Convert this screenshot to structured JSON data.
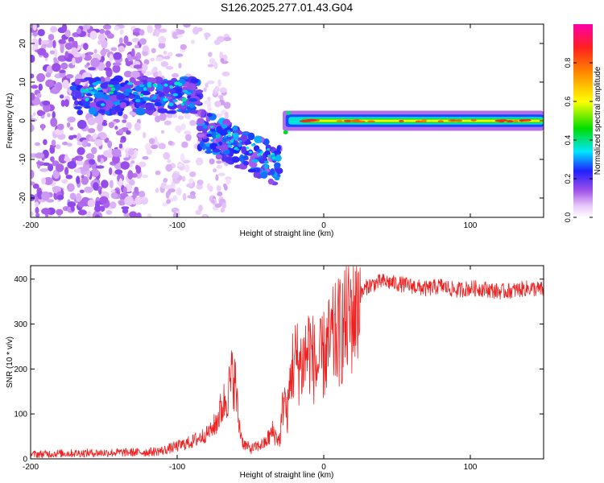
{
  "title": "S126.2025.277.01.43.G04",
  "chart_data": [
    {
      "type": "heatmap",
      "title": "S126.2025.277.01.43.G04",
      "xlabel": "Height of straight line (km)",
      "ylabel": "Frequency (Hz)",
      "xlim": [
        -200,
        150
      ],
      "ylim": [
        -25,
        25
      ],
      "xticks": [
        -200,
        -100,
        0,
        100
      ],
      "xtick_labels": [
        "-200",
        "-100",
        "0",
        "100"
      ],
      "yticks": [
        -20,
        -10,
        0,
        10,
        20
      ],
      "ytick_labels": [
        "-20",
        "-10",
        "0",
        "10",
        "20"
      ],
      "colorbar": {
        "label": "Normalized spectral amplitude",
        "range": [
          0,
          1
        ],
        "ticks": [
          0,
          0.2,
          0.4,
          0.6,
          0.8
        ],
        "tick_labels": [
          "0.0",
          "0.2",
          "0.4",
          "0.6",
          "0.8"
        ],
        "colors": [
          "#ffffff",
          "#d9a8f5",
          "#8a2be2",
          "#2020ff",
          "#00e5ff",
          "#00dd00",
          "#ffff00",
          "#ff2020",
          "#ff00aa"
        ]
      },
      "features": [
        {
          "name": "diffuse scatter",
          "height_km": [
            -200,
            -130
          ],
          "freq_hz": [
            -25,
            25
          ],
          "amplitude": 0.1
        },
        {
          "name": "upper cluster",
          "height_km": [
            -170,
            -85
          ],
          "freq_hz": [
            2,
            10
          ],
          "amplitude": 0.3
        },
        {
          "name": "descending branch",
          "height_km": [
            -85,
            -30
          ],
          "freq_hz": [
            -15,
            0
          ],
          "amplitude": 0.35
        },
        {
          "name": "carrier line",
          "height_km": [
            -25,
            150
          ],
          "freq_hz": [
            -1,
            1
          ],
          "amplitude": 0.9
        }
      ]
    },
    {
      "type": "line",
      "xlabel": "Height of straight line (km)",
      "ylabel": "SNR (10 * v/v)",
      "xlim": [
        -200,
        150
      ],
      "ylim": [
        0,
        430
      ],
      "xticks": [
        -200,
        -100,
        0,
        100
      ],
      "xtick_labels": [
        "-200",
        "-100",
        "0",
        "100"
      ],
      "yticks": [
        0,
        100,
        200,
        300,
        400
      ],
      "ytick_labels": [
        "0",
        "100",
        "200",
        "300",
        "400"
      ],
      "color": "#ee2020",
      "x": [
        -200,
        -180,
        -160,
        -140,
        -120,
        -110,
        -100,
        -90,
        -80,
        -75,
        -70,
        -65,
        -62,
        -60,
        -58,
        -55,
        -50,
        -45,
        -40,
        -35,
        -30,
        -27,
        -25,
        -22,
        -20,
        -15,
        -10,
        -5,
        0,
        5,
        10,
        15,
        20,
        25,
        30,
        40,
        50,
        60,
        70,
        80,
        90,
        100,
        110,
        120,
        130,
        140,
        150
      ],
      "y": [
        10,
        12,
        13,
        14,
        15,
        18,
        28,
        38,
        55,
        70,
        110,
        150,
        190,
        160,
        80,
        35,
        22,
        28,
        35,
        60,
        40,
        150,
        90,
        200,
        220,
        210,
        250,
        200,
        230,
        260,
        280,
        300,
        330,
        365,
        385,
        395,
        390,
        385,
        378,
        385,
        375,
        380,
        378,
        372,
        375,
        380,
        376
      ]
    }
  ]
}
